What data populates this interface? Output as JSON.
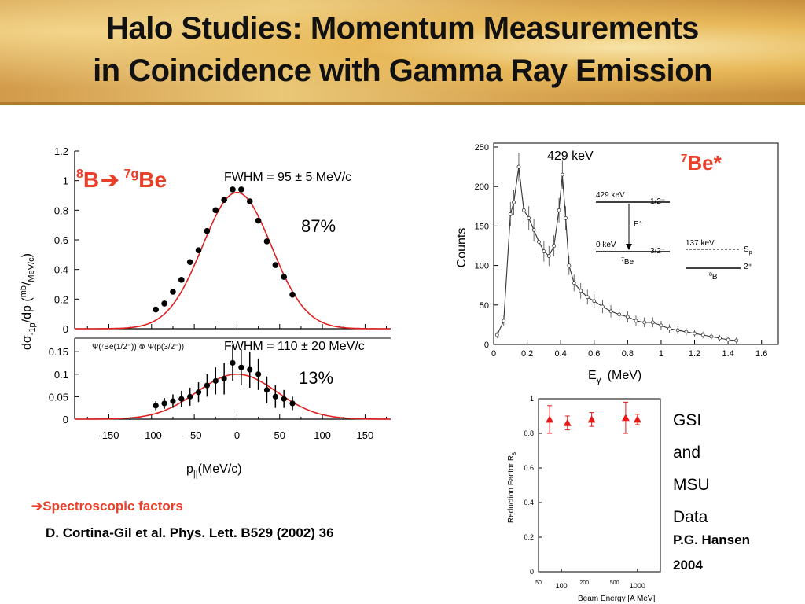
{
  "title": {
    "line1": "Halo Studies: Momentum Measurements",
    "line2": "in Coincidence with Gamma Ray Emission"
  },
  "left_plot": {
    "reaction": {
      "from_sup": "8",
      "from": "B",
      "arrow": "➔",
      "to_sup": "7g",
      "to": "Be"
    },
    "top_panel": {
      "fwhm": "FWHM = 95 ± 5 MeV/c",
      "percent": "87%",
      "y_ticks": [
        "1.2",
        "1",
        "0.8",
        "0.6",
        "0.4",
        "0.2",
        "0"
      ]
    },
    "bottom_panel": {
      "fwhm": "FWHM = 110 ± 20 MeV/c",
      "percent": "13%",
      "psi_label": "Ψ(⁷Be(1/2⁻)) ⊗ Ψ(p(3/2⁻))",
      "y_ticks": [
        "0.15",
        "0.1",
        "0.05",
        "0"
      ]
    },
    "x_ticks": [
      "-150",
      "-100",
      "-50",
      "0",
      "50",
      "100",
      "150"
    ],
    "xlabel": "p",
    "xlabel_sub": "||",
    "xlabel_unit": "(MeV/c)",
    "ylabel": "dσ",
    "ylabel_sub": "-1p",
    "ylabel_mid": "/dp (",
    "ylabel_sup": "mb",
    "ylabel_unit": "/",
    "ylabel_unit_sub": "MeV/c",
    "ylabel_end": ")"
  },
  "footnote": {
    "arrow": "➔",
    "title": "Spectroscopic factors",
    "reference": "D. Cortina-Gil et al. Phys. Lett. B529 (2002) 36"
  },
  "gamma_plot": {
    "label": "Be*",
    "label_sup": "7",
    "peak_label": "429 keV",
    "ylabel": "Counts",
    "xlabel": "E",
    "xlabel_sub": "γ",
    "xlabel_unit": "(MeV)",
    "y_ticks": [
      "250",
      "200",
      "150",
      "100",
      "50",
      "0"
    ],
    "x_ticks": [
      "0",
      "0.2",
      "0.4",
      "0.6",
      "0.8",
      "1",
      "1.2",
      "1.4",
      "1.6"
    ],
    "levels": {
      "excited_energy": "429 keV",
      "excited_spin": "1/2⁻",
      "transition": "E1",
      "ground_energy": "0 keV",
      "ground_spin": "3/2⁻",
      "be7": "Be",
      "be7_sup": "7",
      "b8_energy": "137 keV",
      "b8_sp": "S",
      "b8_sp_sub": "p",
      "b8_spin": "2⁺",
      "b8": "B",
      "b8_sup": "8"
    }
  },
  "reduction_plot": {
    "ylabel": "Reduction Factor  R",
    "ylabel_sub": "s",
    "xlabel": "Beam Energy  [A MeV]",
    "y_ticks": [
      "1",
      "0.8",
      "0.6",
      "0.4",
      "0.2",
      "0"
    ],
    "x_ticks_upper": [
      "50",
      "200",
      "500"
    ],
    "x_ticks_lower": [
      "100",
      "1000"
    ]
  },
  "sidebar": {
    "lines": [
      "GSI",
      "and",
      "MSU",
      "Data"
    ],
    "author": "P.G. Hansen",
    "year": "2004"
  },
  "colors": {
    "accent": "#e8402a",
    "curve": "#e02020",
    "marker": "#e81818"
  },
  "chart_data": [
    {
      "type": "scatter",
      "title": "",
      "xlabel": "p_|| (MeV/c)",
      "ylabel": "dσ_-1p/dp (mb/MeV/c)",
      "xlim": [
        -190,
        180
      ],
      "ylim": [
        0,
        1.2
      ],
      "series": [
        {
          "name": "",
          "x": [
            -95,
            -85,
            -75,
            -65,
            -55,
            -45,
            -35,
            -25,
            -15,
            -5,
            5,
            15,
            25,
            35,
            45,
            55,
            65
          ],
          "y": [
            0.13,
            0.17,
            0.25,
            0.33,
            0.45,
            0.53,
            0.66,
            0.8,
            0.87,
            0.94,
            0.94,
            0.86,
            0.73,
            0.59,
            0.43,
            0.35,
            0.23
          ]
        }
      ],
      "fit": {
        "peak": 0.92,
        "center": 0,
        "fwhm": 95
      }
    },
    {
      "type": "scatter",
      "title": "",
      "xlabel": "p_|| (MeV/c)",
      "ylabel": "dσ_-1p/dp (mb/MeV/c)",
      "xlim": [
        -190,
        180
      ],
      "ylim": [
        0,
        0.18
      ],
      "series": [
        {
          "name": "",
          "x": [
            -95,
            -85,
            -75,
            -65,
            -55,
            -45,
            -35,
            -25,
            -15,
            -5,
            5,
            15,
            25,
            35,
            45,
            55,
            65
          ],
          "y": [
            0.03,
            0.035,
            0.04,
            0.045,
            0.05,
            0.06,
            0.075,
            0.085,
            0.09,
            0.125,
            0.115,
            0.11,
            0.1,
            0.065,
            0.05,
            0.045,
            0.035
          ],
          "err": [
            0.01,
            0.012,
            0.015,
            0.018,
            0.02,
            0.022,
            0.025,
            0.03,
            0.035,
            0.04,
            0.04,
            0.04,
            0.035,
            0.03,
            0.025,
            0.02,
            0.015
          ]
        }
      ],
      "fit": {
        "peak": 0.1,
        "center": 0,
        "fwhm": 110
      }
    },
    {
      "type": "scatter",
      "title": "",
      "xlabel": "E_γ (MeV)",
      "ylabel": "Counts",
      "xlim": [
        0,
        1.7
      ],
      "ylim": [
        0,
        255
      ],
      "series": [
        {
          "name": "",
          "x": [
            0.02,
            0.06,
            0.1,
            0.12,
            0.15,
            0.18,
            0.21,
            0.24,
            0.27,
            0.3,
            0.33,
            0.36,
            0.39,
            0.41,
            0.43,
            0.45,
            0.48,
            0.52,
            0.56,
            0.6,
            0.65,
            0.7,
            0.75,
            0.8,
            0.85,
            0.9,
            0.95,
            1.0,
            1.05,
            1.1,
            1.15,
            1.2,
            1.25,
            1.3,
            1.35,
            1.4,
            1.45
          ],
          "y": [
            12,
            30,
            165,
            180,
            225,
            170,
            160,
            145,
            130,
            118,
            112,
            125,
            170,
            215,
            160,
            100,
            78,
            68,
            60,
            55,
            48,
            42,
            38,
            35,
            30,
            28,
            28,
            24,
            20,
            18,
            16,
            14,
            12,
            10,
            8,
            6,
            5
          ]
        }
      ]
    },
    {
      "type": "scatter",
      "title": "",
      "xlabel": "Beam Energy [A MeV]",
      "ylabel": "Reduction Factor R_s",
      "xlim": [
        50,
        2000
      ],
      "ylim": [
        0,
        1
      ],
      "xscale": "log",
      "series": [
        {
          "name": "",
          "x": [
            70,
            120,
            250,
            700,
            1000
          ],
          "y": [
            0.88,
            0.86,
            0.88,
            0.89,
            0.88
          ],
          "err": [
            0.08,
            0.04,
            0.04,
            0.09,
            0.03
          ]
        }
      ]
    }
  ]
}
